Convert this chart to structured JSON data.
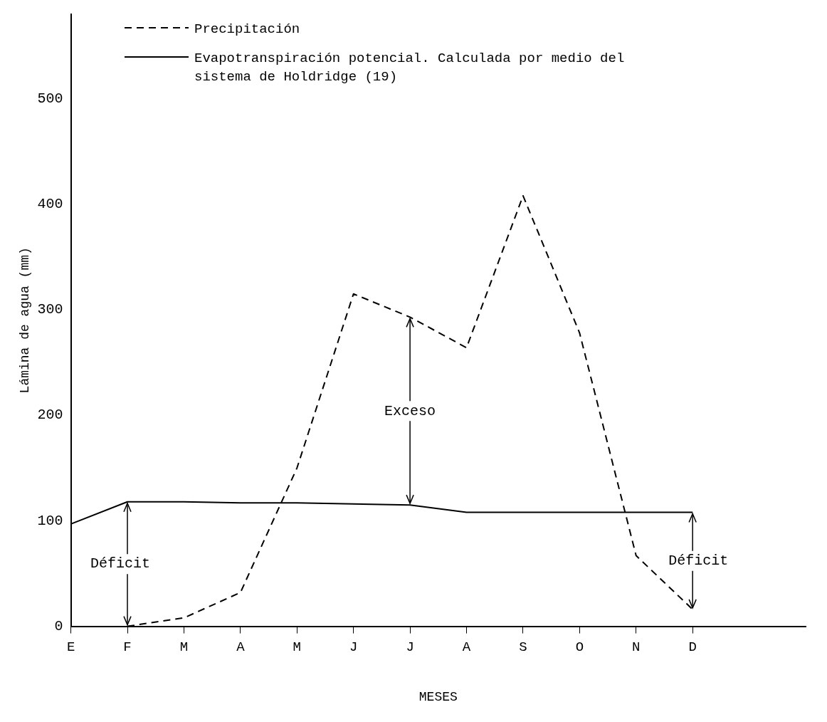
{
  "chart_data": {
    "type": "line",
    "xlabel": "MESES",
    "ylabel": "Lámina de agua (mm)",
    "categories": [
      "E",
      "F",
      "M",
      "A",
      "M",
      "J",
      "J",
      "A",
      "S",
      "O",
      "N",
      "D",
      null,
      null
    ],
    "series": [
      {
        "name": "Precipitación",
        "color": "#000000",
        "line_style": "dashed",
        "values": [
          null,
          0,
          8,
          32,
          150,
          315,
          293,
          264,
          408,
          278,
          67,
          16,
          null,
          null
        ]
      },
      {
        "name": "Evapotranspiración potencial. Calculada por medio del sistema de Holdridge (19)",
        "color": "#000000",
        "line_style": "solid",
        "values": [
          97,
          118,
          118,
          117,
          117,
          116,
          115,
          108,
          108,
          108,
          108,
          108,
          null,
          null
        ]
      }
    ],
    "ylim": [
      0,
      580
    ],
    "yticks": [
      0,
      100,
      200,
      300,
      400,
      500
    ],
    "grid": false,
    "legend": "top left",
    "marker": "none",
    "annotations": [
      {
        "text": "Déficit",
        "x": "F",
        "y": 118
      },
      {
        "text": "Exceso",
        "y": 115
      },
      {
        "text": "Déficit",
        "x": "D",
        "y": 108
      }
    ]
  }
}
